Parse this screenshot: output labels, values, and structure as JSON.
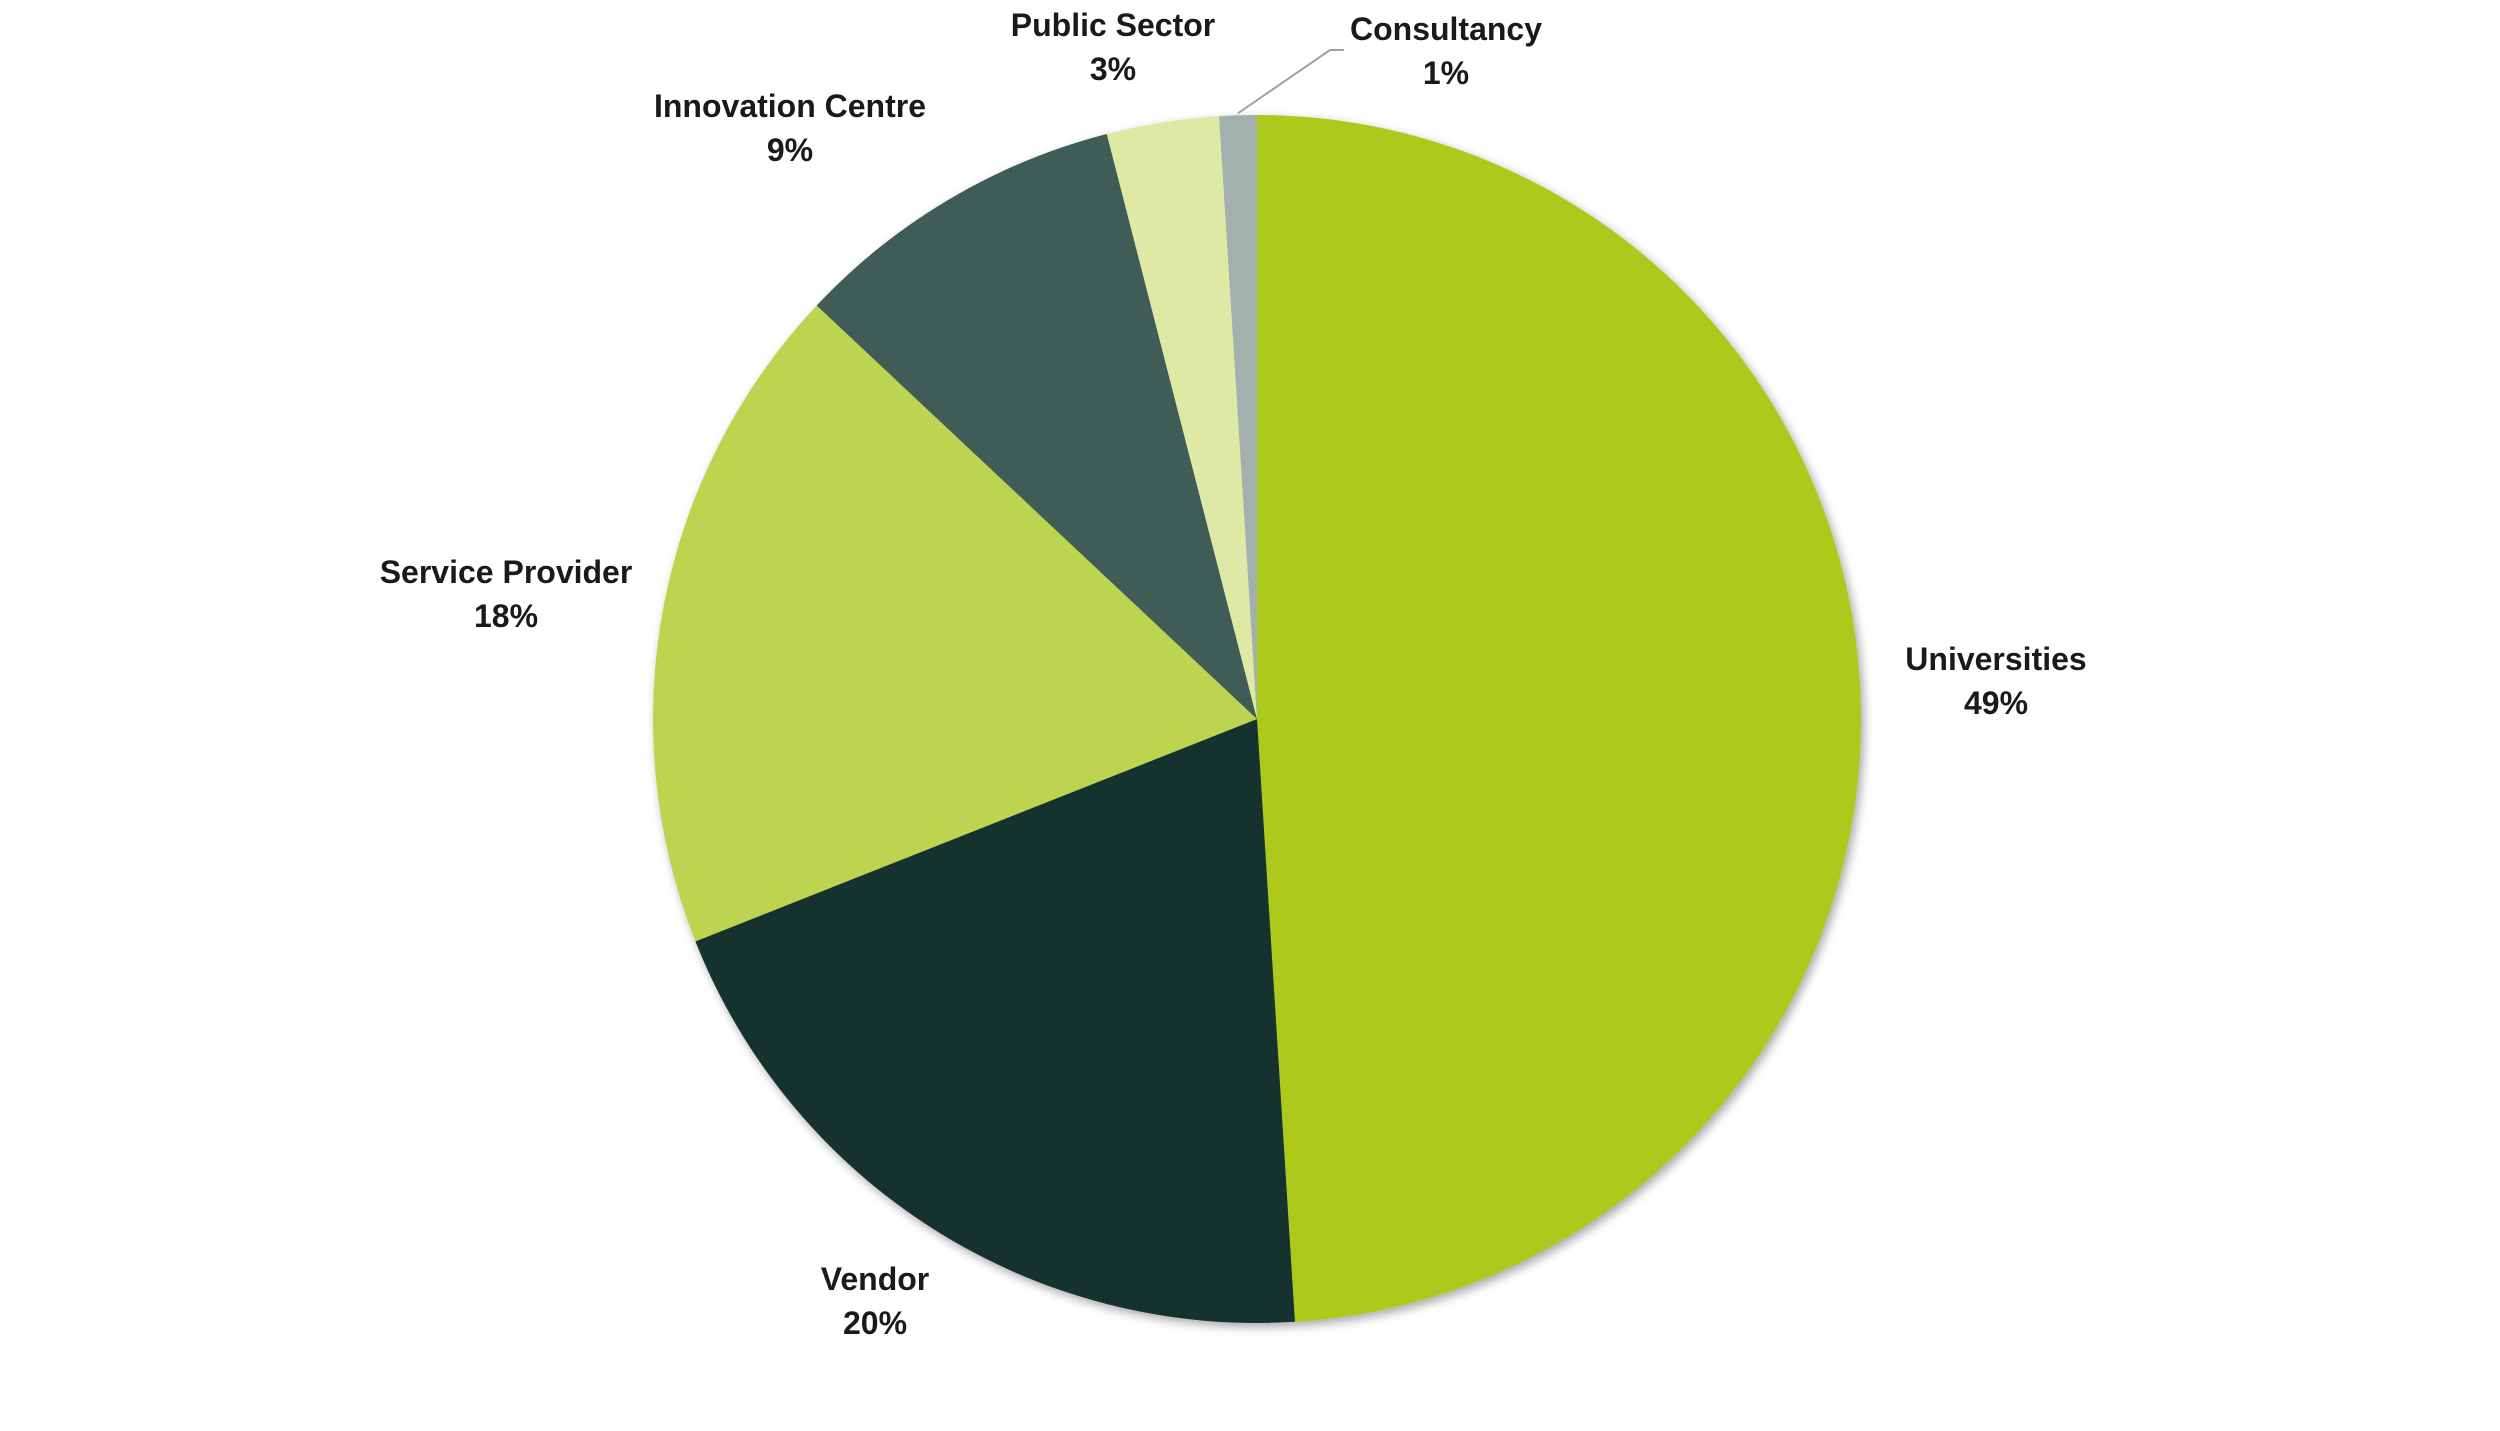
{
  "chart_data": {
    "type": "pie",
    "title": "",
    "slices": [
      {
        "label": "Universities",
        "value": 49,
        "value_label": "49%",
        "color": "#acc91e"
      },
      {
        "label": "Vendor",
        "value": 20,
        "value_label": "20%",
        "color": "#15332e"
      },
      {
        "label": "Service Provider",
        "value": 18,
        "value_label": "18%",
        "color": "#bcd450"
      },
      {
        "label": "Innovation Centre",
        "value": 9,
        "value_label": "9%",
        "color": "#405b56"
      },
      {
        "label": "Public Sector",
        "value": 3,
        "value_label": "3%",
        "color": "#dfe9a6"
      },
      {
        "label": "Consultancy",
        "value": 1,
        "value_label": "1%",
        "color": "#a2b1ae"
      }
    ],
    "start_angle": "12 o'clock",
    "direction": "clockwise",
    "legend": "none",
    "data_labels": "outside"
  }
}
